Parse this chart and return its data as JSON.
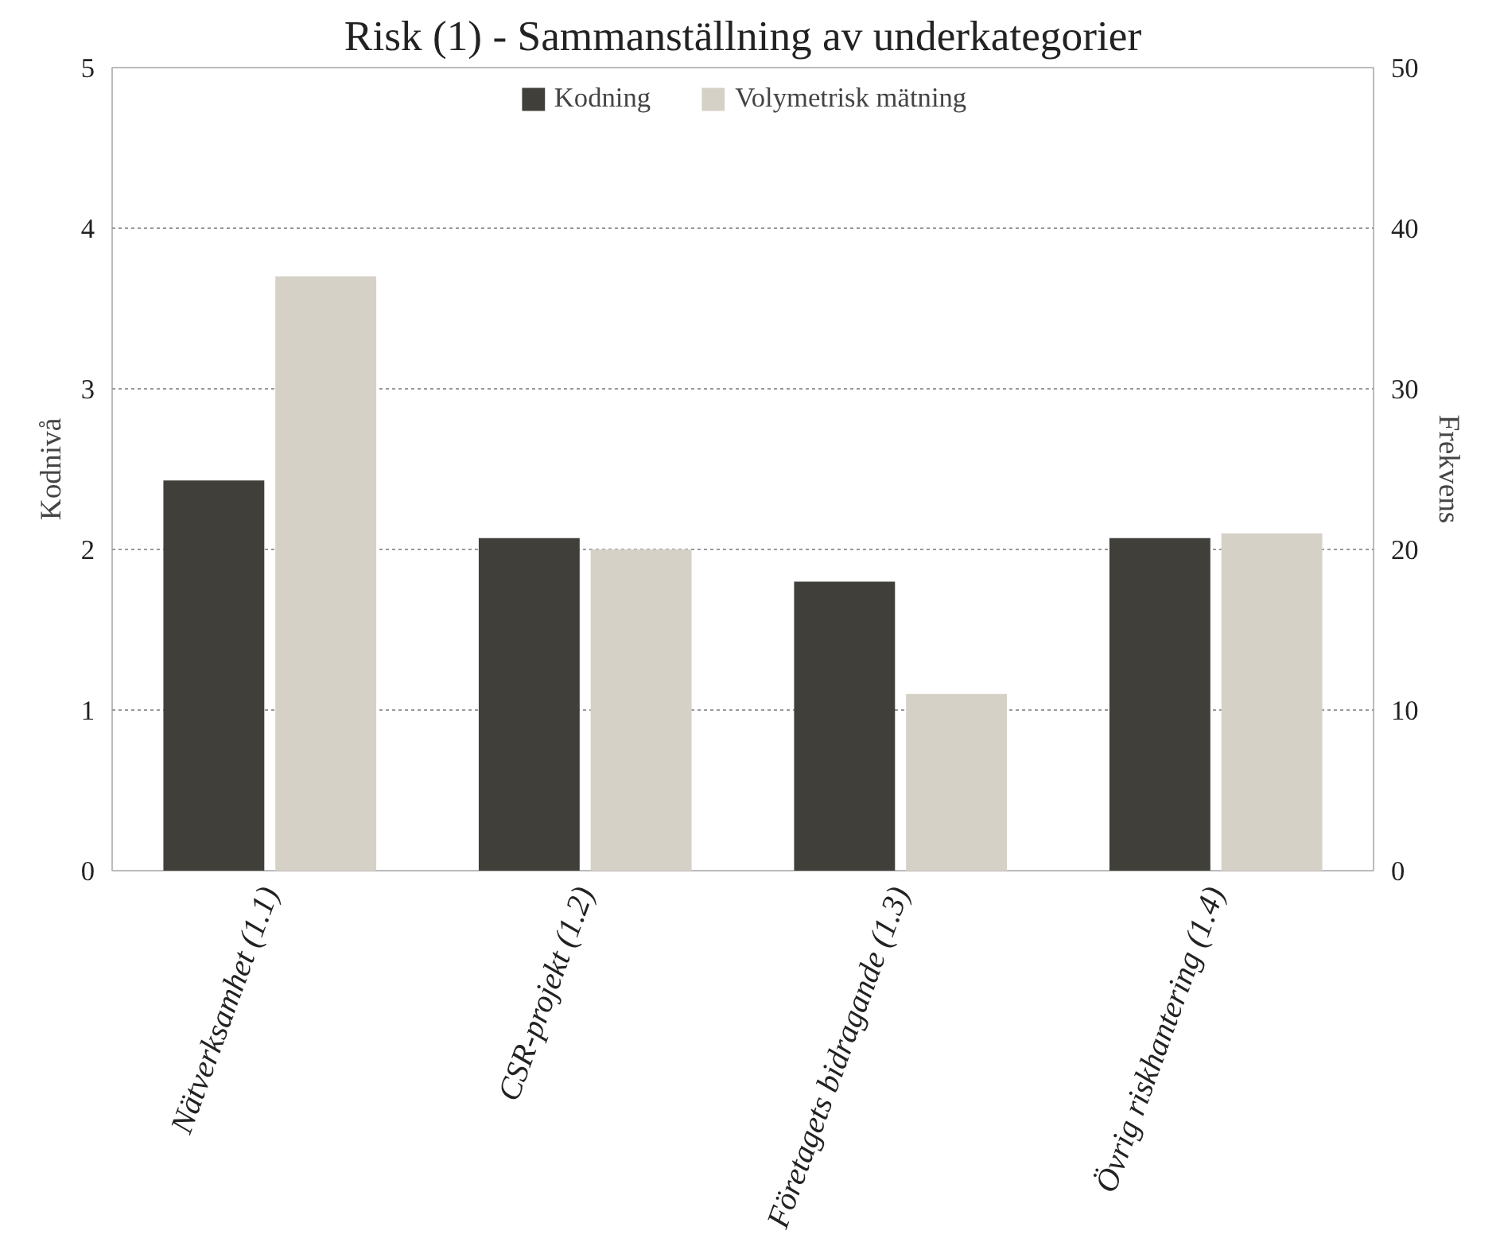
{
  "chart_data": {
    "type": "bar",
    "title": "Risk (1) - Sammanställning av underkategorier",
    "ylabel": "Kodnivå",
    "y2label": "Frekvens",
    "categories": [
      "Nätverksamhet (1.1)",
      "CSR-projekt (1.2)",
      "Företagets bidragande (1.3)",
      "Övrig riskhantering (1.4)"
    ],
    "series": [
      {
        "name": "Kodning",
        "color": "#403f3a",
        "values": [
          2.43,
          2.07,
          1.8,
          2.07
        ]
      },
      {
        "name": "Volymetrisk mätning",
        "color": "#d6d1c7",
        "values": [
          37,
          20,
          11,
          21
        ],
        "axis": "y2"
      }
    ],
    "ylim": [
      0,
      5
    ],
    "yticks": [
      0,
      1,
      2,
      3,
      4,
      5
    ],
    "y2lim": [
      0,
      50
    ],
    "y2ticks": [
      0,
      10,
      20,
      30,
      40,
      50
    ],
    "grid": "y",
    "legend": "top"
  }
}
